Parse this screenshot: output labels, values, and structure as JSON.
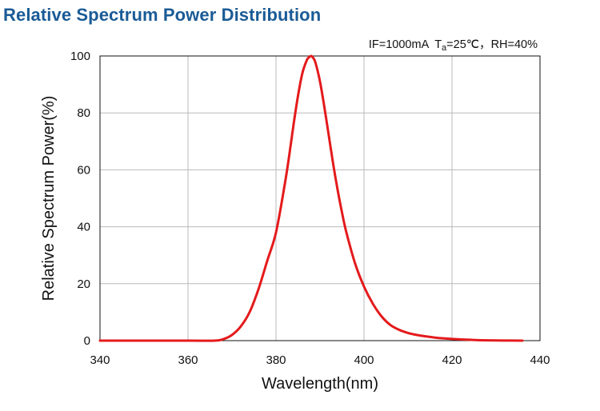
{
  "title": "Relative Spectrum Power Distribution",
  "conditions": {
    "current": "IF=1000mA",
    "temp_symbol": "T",
    "temp_subscript": "a",
    "temp_value": "=25℃，",
    "humidity": "RH=40%"
  },
  "colors": {
    "title": "#1a5b96",
    "curve": "#e41a1c",
    "grid": "#b9b9b9",
    "axis": "#111111"
  },
  "chart_data": {
    "type": "line",
    "title": "Relative Spectrum Power Distribution",
    "xlabel": "Wavelength(nm)",
    "ylabel": "Relative Spectrum Power(%)",
    "xlim": [
      340,
      440
    ],
    "ylim": [
      0,
      100
    ],
    "xticks": [
      340,
      360,
      380,
      400,
      420,
      440
    ],
    "yticks": [
      0,
      20,
      40,
      60,
      80,
      100
    ],
    "grid": true,
    "series": [
      {
        "name": "Relative Spectrum Power",
        "x": [
          340,
          360,
          366,
          368,
          370,
          372,
          374,
          376,
          378,
          380,
          382,
          383,
          384,
          385,
          386,
          387,
          387.5,
          388,
          388.5,
          389,
          390,
          391,
          392,
          393,
          394,
          395,
          396,
          398,
          400,
          402,
          404,
          406,
          408,
          410,
          412,
          414,
          416,
          418,
          420,
          424,
          428,
          436
        ],
        "y": [
          0,
          0,
          0,
          0.5,
          2,
          5,
          10,
          18,
          28,
          38,
          55,
          65,
          76,
          86,
          94,
          98.5,
          99.5,
          100,
          99.2,
          97.5,
          91,
          82,
          72,
          62,
          53,
          45,
          38,
          27,
          19,
          13,
          8.5,
          5.5,
          3.8,
          2.7,
          2,
          1.5,
          1.1,
          0.8,
          0.6,
          0.3,
          0.1,
          0
        ]
      }
    ]
  }
}
